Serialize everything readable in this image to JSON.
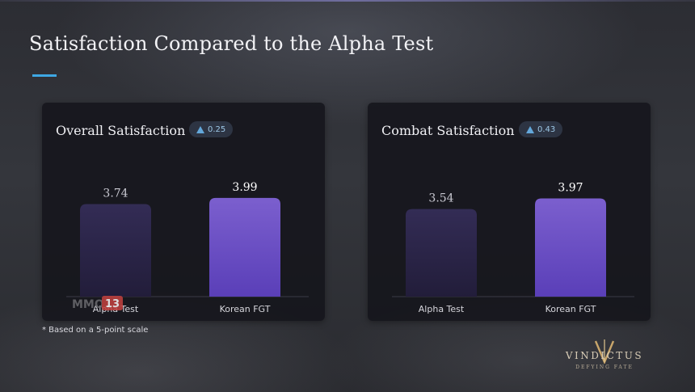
{
  "slide": {
    "title": "Satisfaction Compared to the Alpha Test",
    "footnote": "* Based on a 5-point scale",
    "accent_color": "#3ea7e3",
    "watermark_text": "MMO13",
    "logo": {
      "main": "VINDICTUS",
      "sub": "DEFYING FATE"
    }
  },
  "panels": [
    {
      "title": "Overall Satisfaction",
      "delta_icon": "up-triangle-icon",
      "delta": "0.25"
    },
    {
      "title": "Combat Satisfaction",
      "delta_icon": "up-triangle-icon",
      "delta": "0.43"
    }
  ],
  "chart_data": [
    {
      "type": "bar",
      "title": "Overall Satisfaction",
      "categories": [
        "Alpha Test",
        "Korean FGT"
      ],
      "values": [
        3.74,
        3.99
      ],
      "value_labels": [
        "3.74",
        "3.99"
      ],
      "ylim": [
        0,
        5
      ],
      "grid": false,
      "bar_colors": [
        "#2f2a4e",
        "#6a4fc9"
      ]
    },
    {
      "type": "bar",
      "title": "Combat Satisfaction",
      "categories": [
        "Alpha Test",
        "Korean FGT"
      ],
      "values": [
        3.54,
        3.97
      ],
      "value_labels": [
        "3.54",
        "3.97"
      ],
      "ylim": [
        0,
        5
      ],
      "grid": false,
      "bar_colors": [
        "#2f2a4e",
        "#6a4fc9"
      ]
    }
  ]
}
